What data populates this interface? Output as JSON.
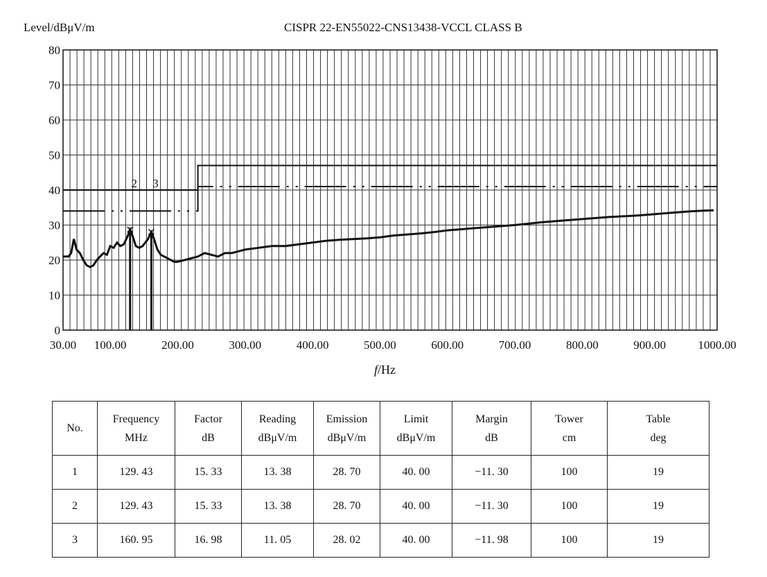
{
  "chart_data": {
    "type": "line",
    "title": "CISPR 22-EN55022-CNS13438-VCCL CLASS B",
    "ylabel": "Level/dBμV/m",
    "xlabel_var": "f",
    "xlabel_unit": "/Hz",
    "xlim": [
      30,
      1000
    ],
    "ylim": [
      0,
      80
    ],
    "x_ticks": [
      "30.00",
      "100.00",
      "200.00",
      "300.00",
      "400.00",
      "500.00",
      "600.00",
      "700.00",
      "800.00",
      "900.00",
      "1000.00"
    ],
    "y_ticks": [
      "0",
      "10",
      "20",
      "30",
      "40",
      "50",
      "60",
      "70",
      "80"
    ],
    "grid": true,
    "series": [
      {
        "kind": "measurement",
        "x": [
          30,
          38,
          42,
          46,
          50,
          55,
          60,
          65,
          70,
          75,
          80,
          85,
          90,
          95,
          100,
          105,
          110,
          115,
          120,
          125,
          129.43,
          133,
          138,
          143,
          148,
          152,
          156,
          160.95,
          165,
          170,
          175,
          180,
          185,
          190,
          195,
          200,
          210,
          220,
          230,
          240,
          250,
          260,
          270,
          280,
          290,
          300,
          320,
          340,
          360,
          380,
          400,
          420,
          440,
          460,
          480,
          500,
          520,
          540,
          560,
          580,
          600,
          620,
          640,
          660,
          680,
          700,
          720,
          740,
          760,
          780,
          800,
          820,
          840,
          860,
          880,
          900,
          920,
          940,
          960,
          980,
          995
        ],
        "y": [
          21,
          21,
          22,
          26,
          23,
          22,
          20,
          18.5,
          18,
          18.5,
          20,
          21,
          22,
          21.5,
          24,
          23.5,
          25,
          24,
          24.5,
          26.5,
          28.7,
          27,
          24,
          23.5,
          24,
          25,
          26,
          28,
          26,
          23,
          21.5,
          21,
          20.5,
          20,
          19.5,
          19.5,
          20,
          20.5,
          21,
          22,
          21.5,
          21,
          22,
          22,
          22.5,
          23,
          23.5,
          24,
          24,
          24.5,
          25,
          25.5,
          25.8,
          26,
          26.2,
          26.5,
          27,
          27.3,
          27.6,
          28,
          28.5,
          28.8,
          29.1,
          29.4,
          29.7,
          30,
          30.4,
          30.8,
          31.1,
          31.4,
          31.7,
          32,
          32.3,
          32.5,
          32.7,
          33,
          33.3,
          33.6,
          33.9,
          34.1,
          34.2
        ]
      },
      {
        "kind": "limit-quasi-peak",
        "x": [
          30,
          230,
          230,
          1000
        ],
        "y": [
          40,
          40,
          47,
          47
        ]
      },
      {
        "kind": "limit-average",
        "x": [
          30,
          230,
          230,
          1000
        ],
        "y": [
          34,
          34,
          41,
          41
        ]
      }
    ],
    "markers": [
      {
        "label": "2",
        "x": 129.43,
        "y": 28.7
      },
      {
        "label": "3",
        "x": 160.95,
        "y": 28.02
      }
    ]
  },
  "table": {
    "headers": [
      {
        "top": "No.",
        "bottom": ""
      },
      {
        "top": "Frequency",
        "bottom": "MHz"
      },
      {
        "top": "Factor",
        "bottom": "dB"
      },
      {
        "top": "Reading",
        "bottom": "dBμV/m"
      },
      {
        "top": "Emission",
        "bottom": "dBμV/m"
      },
      {
        "top": "Limit",
        "bottom": "dBμV/m"
      },
      {
        "top": "Margin",
        "bottom": "dB"
      },
      {
        "top": "Tower",
        "bottom": "cm"
      },
      {
        "top": "Table",
        "bottom": "deg"
      }
    ],
    "rows": [
      [
        "1",
        "129. 43",
        "15. 33",
        "13. 38",
        "28. 70",
        "40. 00",
        "−11. 30",
        "100",
        "19"
      ],
      [
        "2",
        "129. 43",
        "15. 33",
        "13. 38",
        "28. 70",
        "40. 00",
        "−11. 30",
        "100",
        "19"
      ],
      [
        "3",
        "160. 95",
        "16. 98",
        "11. 05",
        "28. 02",
        "40. 00",
        "−11. 98",
        "100",
        "19"
      ]
    ]
  }
}
